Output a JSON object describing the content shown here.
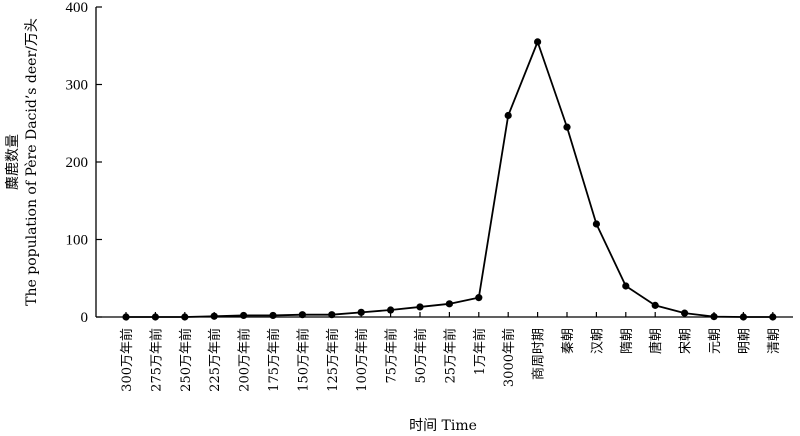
{
  "chart_data": {
    "type": "line",
    "xlabel": "时间 Time",
    "ylabel_cn": "麋鹿数量",
    "ylabel_en": "The population of Père Dacid’s deer/万头",
    "ylim": [
      0,
      400
    ],
    "yticks": [
      0,
      100,
      200,
      300,
      400
    ],
    "grid": false,
    "categories": [
      "300万年前",
      "275万年前",
      "250万年前",
      "225万年前",
      "200万年前",
      "175万年前",
      "150万年前",
      "125万年前",
      "100万年前",
      "75万年前",
      "50万年前",
      "25万年前",
      "1万年前",
      "3000年前",
      "商周时期",
      "秦朝",
      "汉朝",
      "隋朝",
      "唐朝",
      "宋朝",
      "元朝",
      "明朝",
      "清朝"
    ],
    "values": [
      0,
      0,
      0,
      1,
      2,
      2,
      3,
      3,
      6,
      9,
      13,
      17,
      25,
      260,
      355,
      245,
      120,
      40,
      15,
      5,
      0.5,
      0,
      0
    ]
  }
}
